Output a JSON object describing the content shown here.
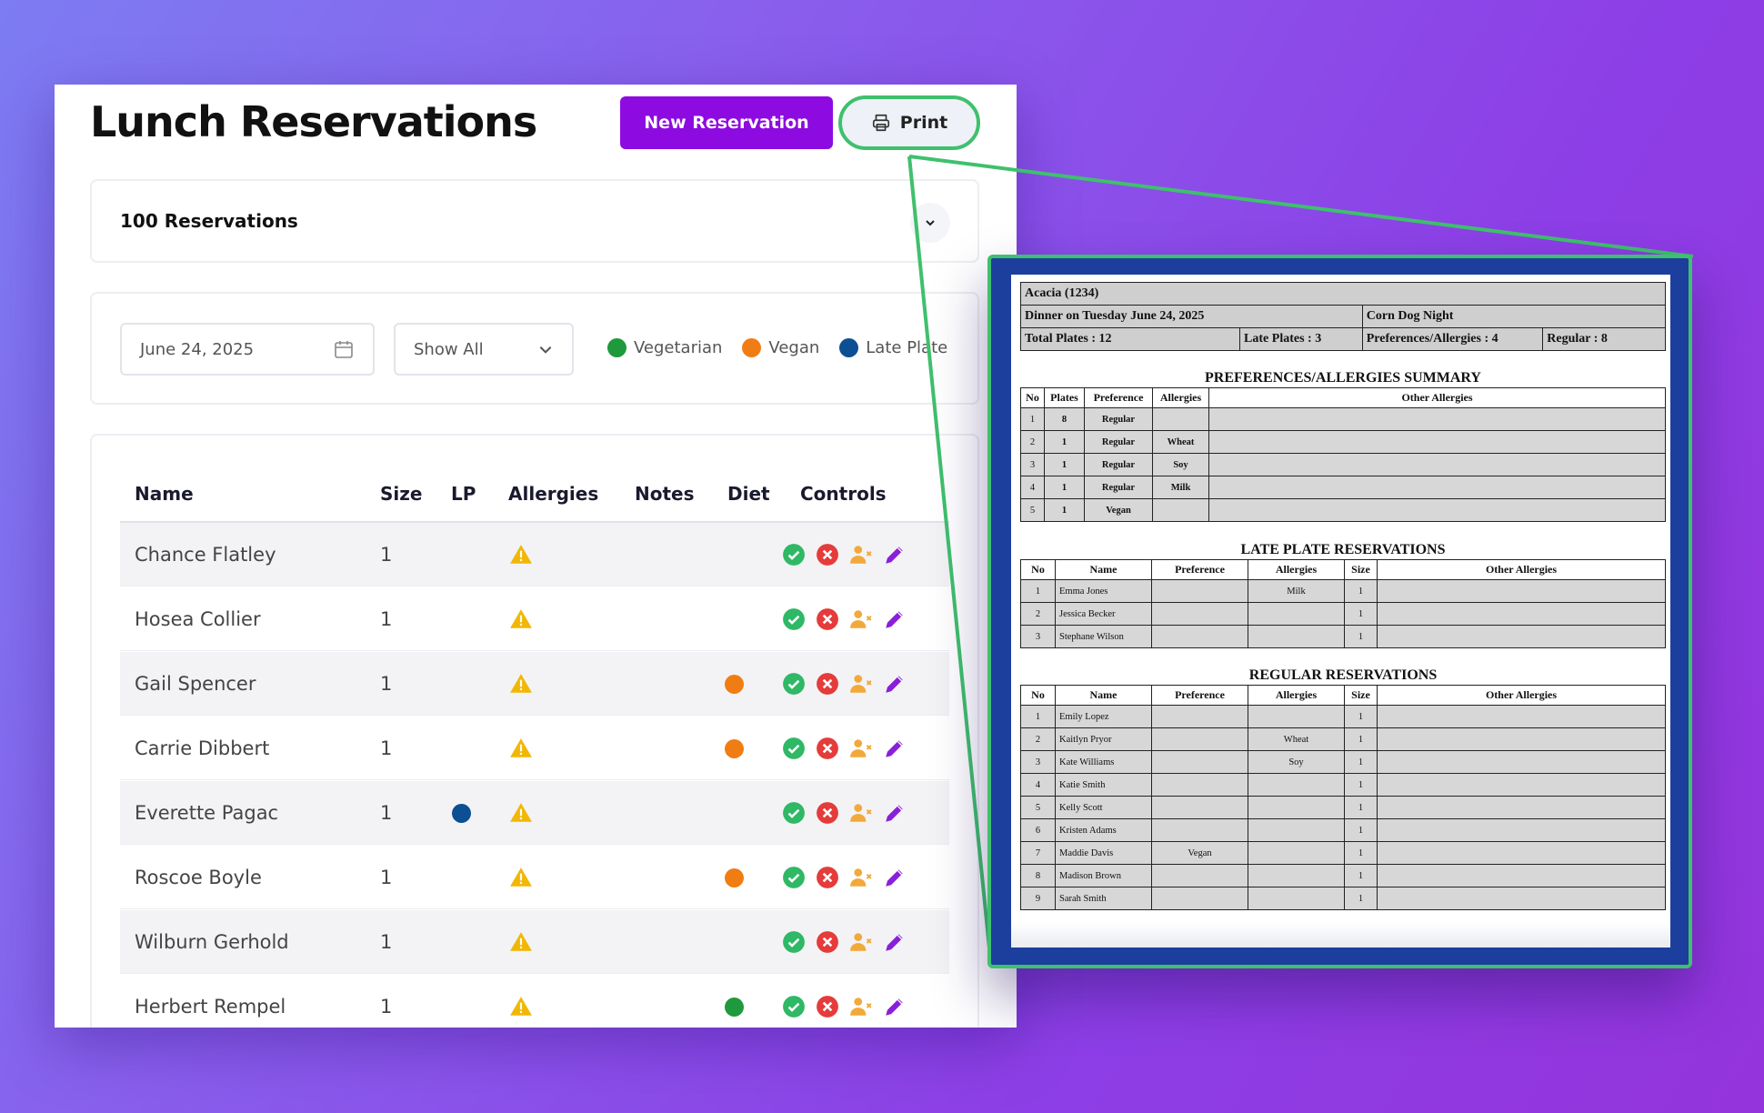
{
  "app": {
    "title": "Lunch Reservations",
    "new_button": "New Reservation",
    "print_button": "Print",
    "summary_count": "100 Reservations"
  },
  "filters": {
    "date_value": "June 24, 2025",
    "show_value": "Show All",
    "legend": [
      {
        "label": "Vegetarian",
        "color": "#1e9a3c"
      },
      {
        "label": "Vegan",
        "color": "#f07d14"
      },
      {
        "label": "Late Plate",
        "color": "#0d4f93"
      }
    ]
  },
  "table": {
    "headers": {
      "name": "Name",
      "size": "Size",
      "lp": "LP",
      "allergies": "Allergies",
      "notes": "Notes",
      "diet": "Diet",
      "controls": "Controls"
    },
    "rows": [
      {
        "name": "Chance Flatley",
        "size": "1",
        "lp": false,
        "diet": null
      },
      {
        "name": "Hosea Collier",
        "size": "1",
        "lp": false,
        "diet": null
      },
      {
        "name": "Gail Spencer",
        "size": "1",
        "lp": false,
        "diet": "vegan"
      },
      {
        "name": "Carrie Dibbert",
        "size": "1",
        "lp": false,
        "diet": "vegan"
      },
      {
        "name": "Everette Pagac",
        "size": "1",
        "lp": true,
        "diet": null
      },
      {
        "name": "Roscoe Boyle",
        "size": "1",
        "lp": false,
        "diet": "vegan"
      },
      {
        "name": "Wilburn Gerhold",
        "size": "1",
        "lp": false,
        "diet": null
      },
      {
        "name": "Herbert Rempel",
        "size": "1",
        "lp": false,
        "diet": "vegetarian"
      }
    ],
    "icons": {
      "allergy": "warning-icon",
      "approve": "check-circle-icon",
      "reject": "x-circle-icon",
      "assign": "user-x-icon",
      "edit": "pencil-icon"
    }
  },
  "print_report": {
    "header": {
      "location": "Acacia (1234)",
      "meal": "Dinner on Tuesday June 24, 2025",
      "theme": "Corn Dog Night",
      "total_plates": "Total Plates : 12",
      "late_plates": "Late Plates : 3",
      "prefs": "Preferences/Allergies : 4",
      "regular": "Regular : 8"
    },
    "summary": {
      "title": "PREFERENCES/ALLERGIES SUMMARY",
      "columns": [
        "No",
        "Plates",
        "Preference",
        "Allergies",
        "Other Allergies"
      ],
      "rows": [
        [
          "1",
          "8",
          "Regular",
          "",
          ""
        ],
        [
          "2",
          "1",
          "Regular",
          "Wheat",
          ""
        ],
        [
          "3",
          "1",
          "Regular",
          "Soy",
          ""
        ],
        [
          "4",
          "1",
          "Regular",
          "Milk",
          ""
        ],
        [
          "5",
          "1",
          "Vegan",
          "",
          ""
        ]
      ]
    },
    "late": {
      "title": "LATE PLATE RESERVATIONS",
      "columns": [
        "No",
        "Name",
        "Preference",
        "Allergies",
        "Size",
        "Other Allergies"
      ],
      "rows": [
        [
          "1",
          "Emma Jones",
          "",
          "Milk",
          "1",
          ""
        ],
        [
          "2",
          "Jessica Becker",
          "",
          "",
          "1",
          ""
        ],
        [
          "3",
          "Stephane Wilson",
          "",
          "",
          "1",
          ""
        ]
      ]
    },
    "regular": {
      "title": "REGULAR RESERVATIONS",
      "columns": [
        "No",
        "Name",
        "Preference",
        "Allergies",
        "Size",
        "Other Allergies"
      ],
      "rows": [
        [
          "1",
          "Emily Lopez",
          "",
          "",
          "1",
          ""
        ],
        [
          "2",
          "Kaitlyn Pryor",
          "",
          "Wheat",
          "1",
          ""
        ],
        [
          "3",
          "Kate Williams",
          "",
          "Soy",
          "1",
          ""
        ],
        [
          "4",
          "Katie Smith",
          "",
          "",
          "1",
          ""
        ],
        [
          "5",
          "Kelly Scott",
          "",
          "",
          "1",
          ""
        ],
        [
          "6",
          "Kristen Adams",
          "",
          "",
          "1",
          ""
        ],
        [
          "7",
          "Maddie Davis",
          "Vegan",
          "",
          "1",
          ""
        ],
        [
          "8",
          "Madison Brown",
          "",
          "",
          "1",
          ""
        ],
        [
          "9",
          "Sarah Smith",
          "",
          "",
          "1",
          ""
        ]
      ]
    }
  },
  "colors": {
    "accent": "#8d0be0",
    "highlight": "#3fc06d",
    "warning": "#f2b705",
    "approve": "#2fb865",
    "reject": "#e53b3b",
    "user": "#f2a93a",
    "edit": "#8a1fd9"
  }
}
